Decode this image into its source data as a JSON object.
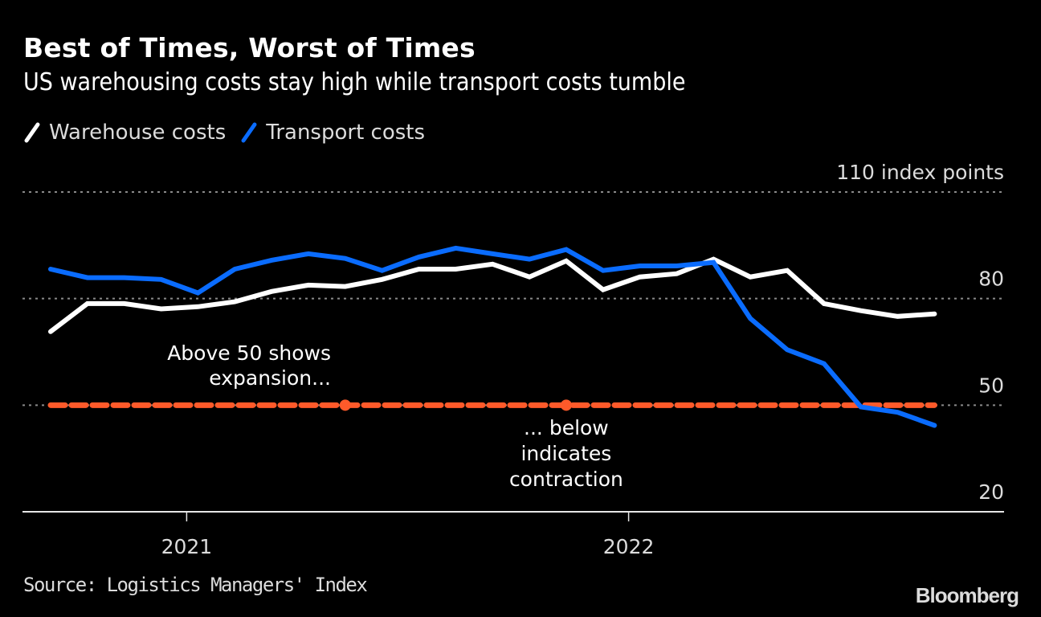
{
  "header": {
    "title": "Best of Times, Worst of Times",
    "subtitle": "US warehousing costs stay high while transport costs tumble"
  },
  "legend": [
    {
      "label": "Warehouse costs",
      "color": "#ffffff"
    },
    {
      "label": "Transport costs",
      "color": "#0a6cff"
    }
  ],
  "footer": {
    "source": "Source: Logistics Managers' Index",
    "brand": "Bloomberg"
  },
  "chart_data": {
    "type": "line",
    "title": "Best of Times, Worst of Times",
    "subtitle": "US warehousing costs stay high while transport costs tumble",
    "xlabel": "",
    "ylabel": "index points",
    "ylim": [
      20,
      110
    ],
    "yticks": [
      20,
      50,
      80,
      110
    ],
    "ytick_labels": [
      "20",
      "50",
      "80",
      "110 index points"
    ],
    "xticks": [
      {
        "label": "2021",
        "index": 4
      },
      {
        "label": "2022",
        "index": 16
      }
    ],
    "grid": true,
    "legend_position": "top-left",
    "x": [
      "2020-09",
      "2020-10",
      "2020-11",
      "2020-12",
      "2021-01",
      "2021-02",
      "2021-03",
      "2021-04",
      "2021-05",
      "2021-06",
      "2021-07",
      "2021-08",
      "2021-09",
      "2021-10",
      "2021-11",
      "2021-12",
      "2022-01",
      "2022-02",
      "2022-03",
      "2022-04",
      "2022-05",
      "2022-06",
      "2022-07",
      "2022-08",
      "2022-09"
    ],
    "series": [
      {
        "name": "Warehouse costs",
        "color": "#ffffff",
        "values": [
          70.7,
          78.6,
          78.6,
          77.1,
          77.7,
          79.1,
          82.0,
          83.8,
          83.4,
          85.4,
          88.3,
          88.3,
          89.7,
          86.1,
          90.6,
          82.5,
          86.1,
          87.0,
          91.1,
          86.1,
          87.9,
          78.6,
          76.6,
          75.0,
          75.7
        ]
      },
      {
        "name": "Transport costs",
        "color": "#0a6cff",
        "values": [
          88.3,
          85.9,
          85.9,
          85.4,
          81.6,
          88.3,
          90.8,
          92.6,
          91.3,
          87.9,
          91.7,
          94.2,
          92.6,
          91.1,
          93.8,
          87.9,
          89.2,
          89.2,
          90.2,
          74.4,
          65.6,
          61.7,
          49.5,
          48.0,
          44.3
        ]
      }
    ],
    "reference_line": {
      "value": 50,
      "color": "#ff5a2a",
      "style": "dashed",
      "marker_indices": [
        8,
        14
      ]
    },
    "annotations": [
      {
        "lines": [
          "Above 50 shows",
          "expansion..."
        ],
        "anchor_index": 8,
        "position": "above-left"
      },
      {
        "lines": [
          "... below",
          "indicates",
          "contraction"
        ],
        "anchor_index": 14,
        "position": "below"
      }
    ]
  }
}
